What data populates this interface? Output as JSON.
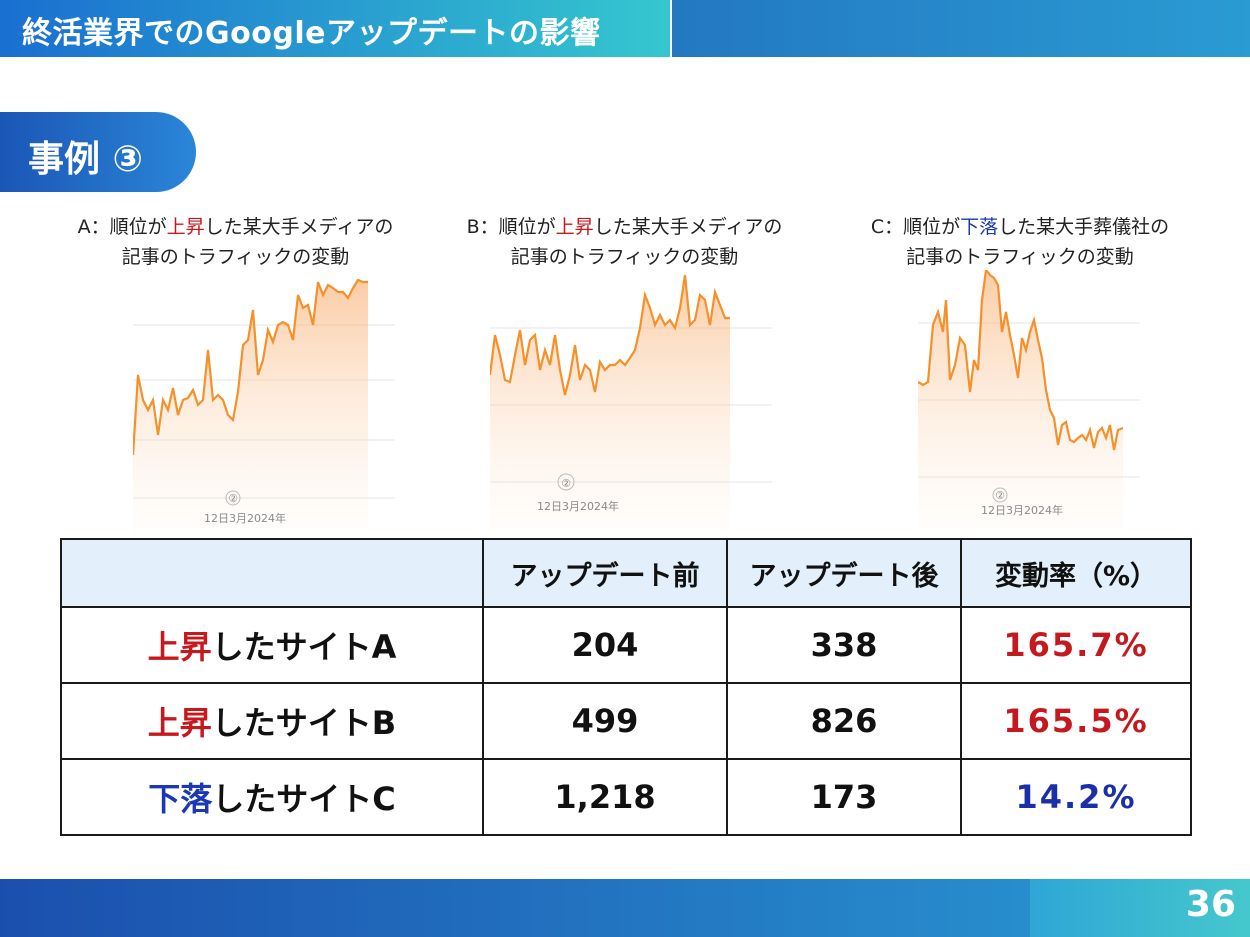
{
  "header": {
    "title": "終活業界でのGoogleアップデートの影響"
  },
  "section": {
    "label": "事例 ③"
  },
  "charts": [
    {
      "caption_prefix": "A：順位が",
      "caption_highlight": "上昇",
      "caption_suffix": "した某大手メディアの",
      "caption_line2": "記事のトラフィックの変動",
      "watermark": "②",
      "tick_label": "12日3月2024年",
      "trend": "up",
      "color": "#f5902a"
    },
    {
      "caption_prefix": "B：順位が",
      "caption_highlight": "上昇",
      "caption_suffix": "した某大手メディアの",
      "caption_line2": "記事のトラフィックの変動",
      "watermark": "②",
      "tick_label": "12日3月2024年",
      "trend": "up",
      "color": "#f5902a"
    },
    {
      "caption_prefix": "C：順位が",
      "caption_highlight": "下落",
      "caption_suffix": "した某大手葬儀社の",
      "caption_line2": "記事のトラフィックの変動",
      "watermark": "②",
      "tick_label": "12日3月2024年",
      "trend": "down",
      "color": "#f5902a"
    }
  ],
  "table": {
    "headers": [
      "",
      "アップデート前",
      "アップデート後",
      "変動率（%）"
    ],
    "rows": [
      {
        "label_highlight": "上昇",
        "label_rest": "したサイトA",
        "before": "204",
        "after": "338",
        "rate": "165.7%",
        "trend": "up"
      },
      {
        "label_highlight": "上昇",
        "label_rest": "したサイトB",
        "before": "499",
        "after": "826",
        "rate": "165.5%",
        "trend": "up"
      },
      {
        "label_highlight": "下落",
        "label_rest": "したサイトC",
        "before": "1,218",
        "after": "173",
        "rate": "14.2%",
        "trend": "down"
      }
    ]
  },
  "footer": {
    "page_number": "36"
  }
}
